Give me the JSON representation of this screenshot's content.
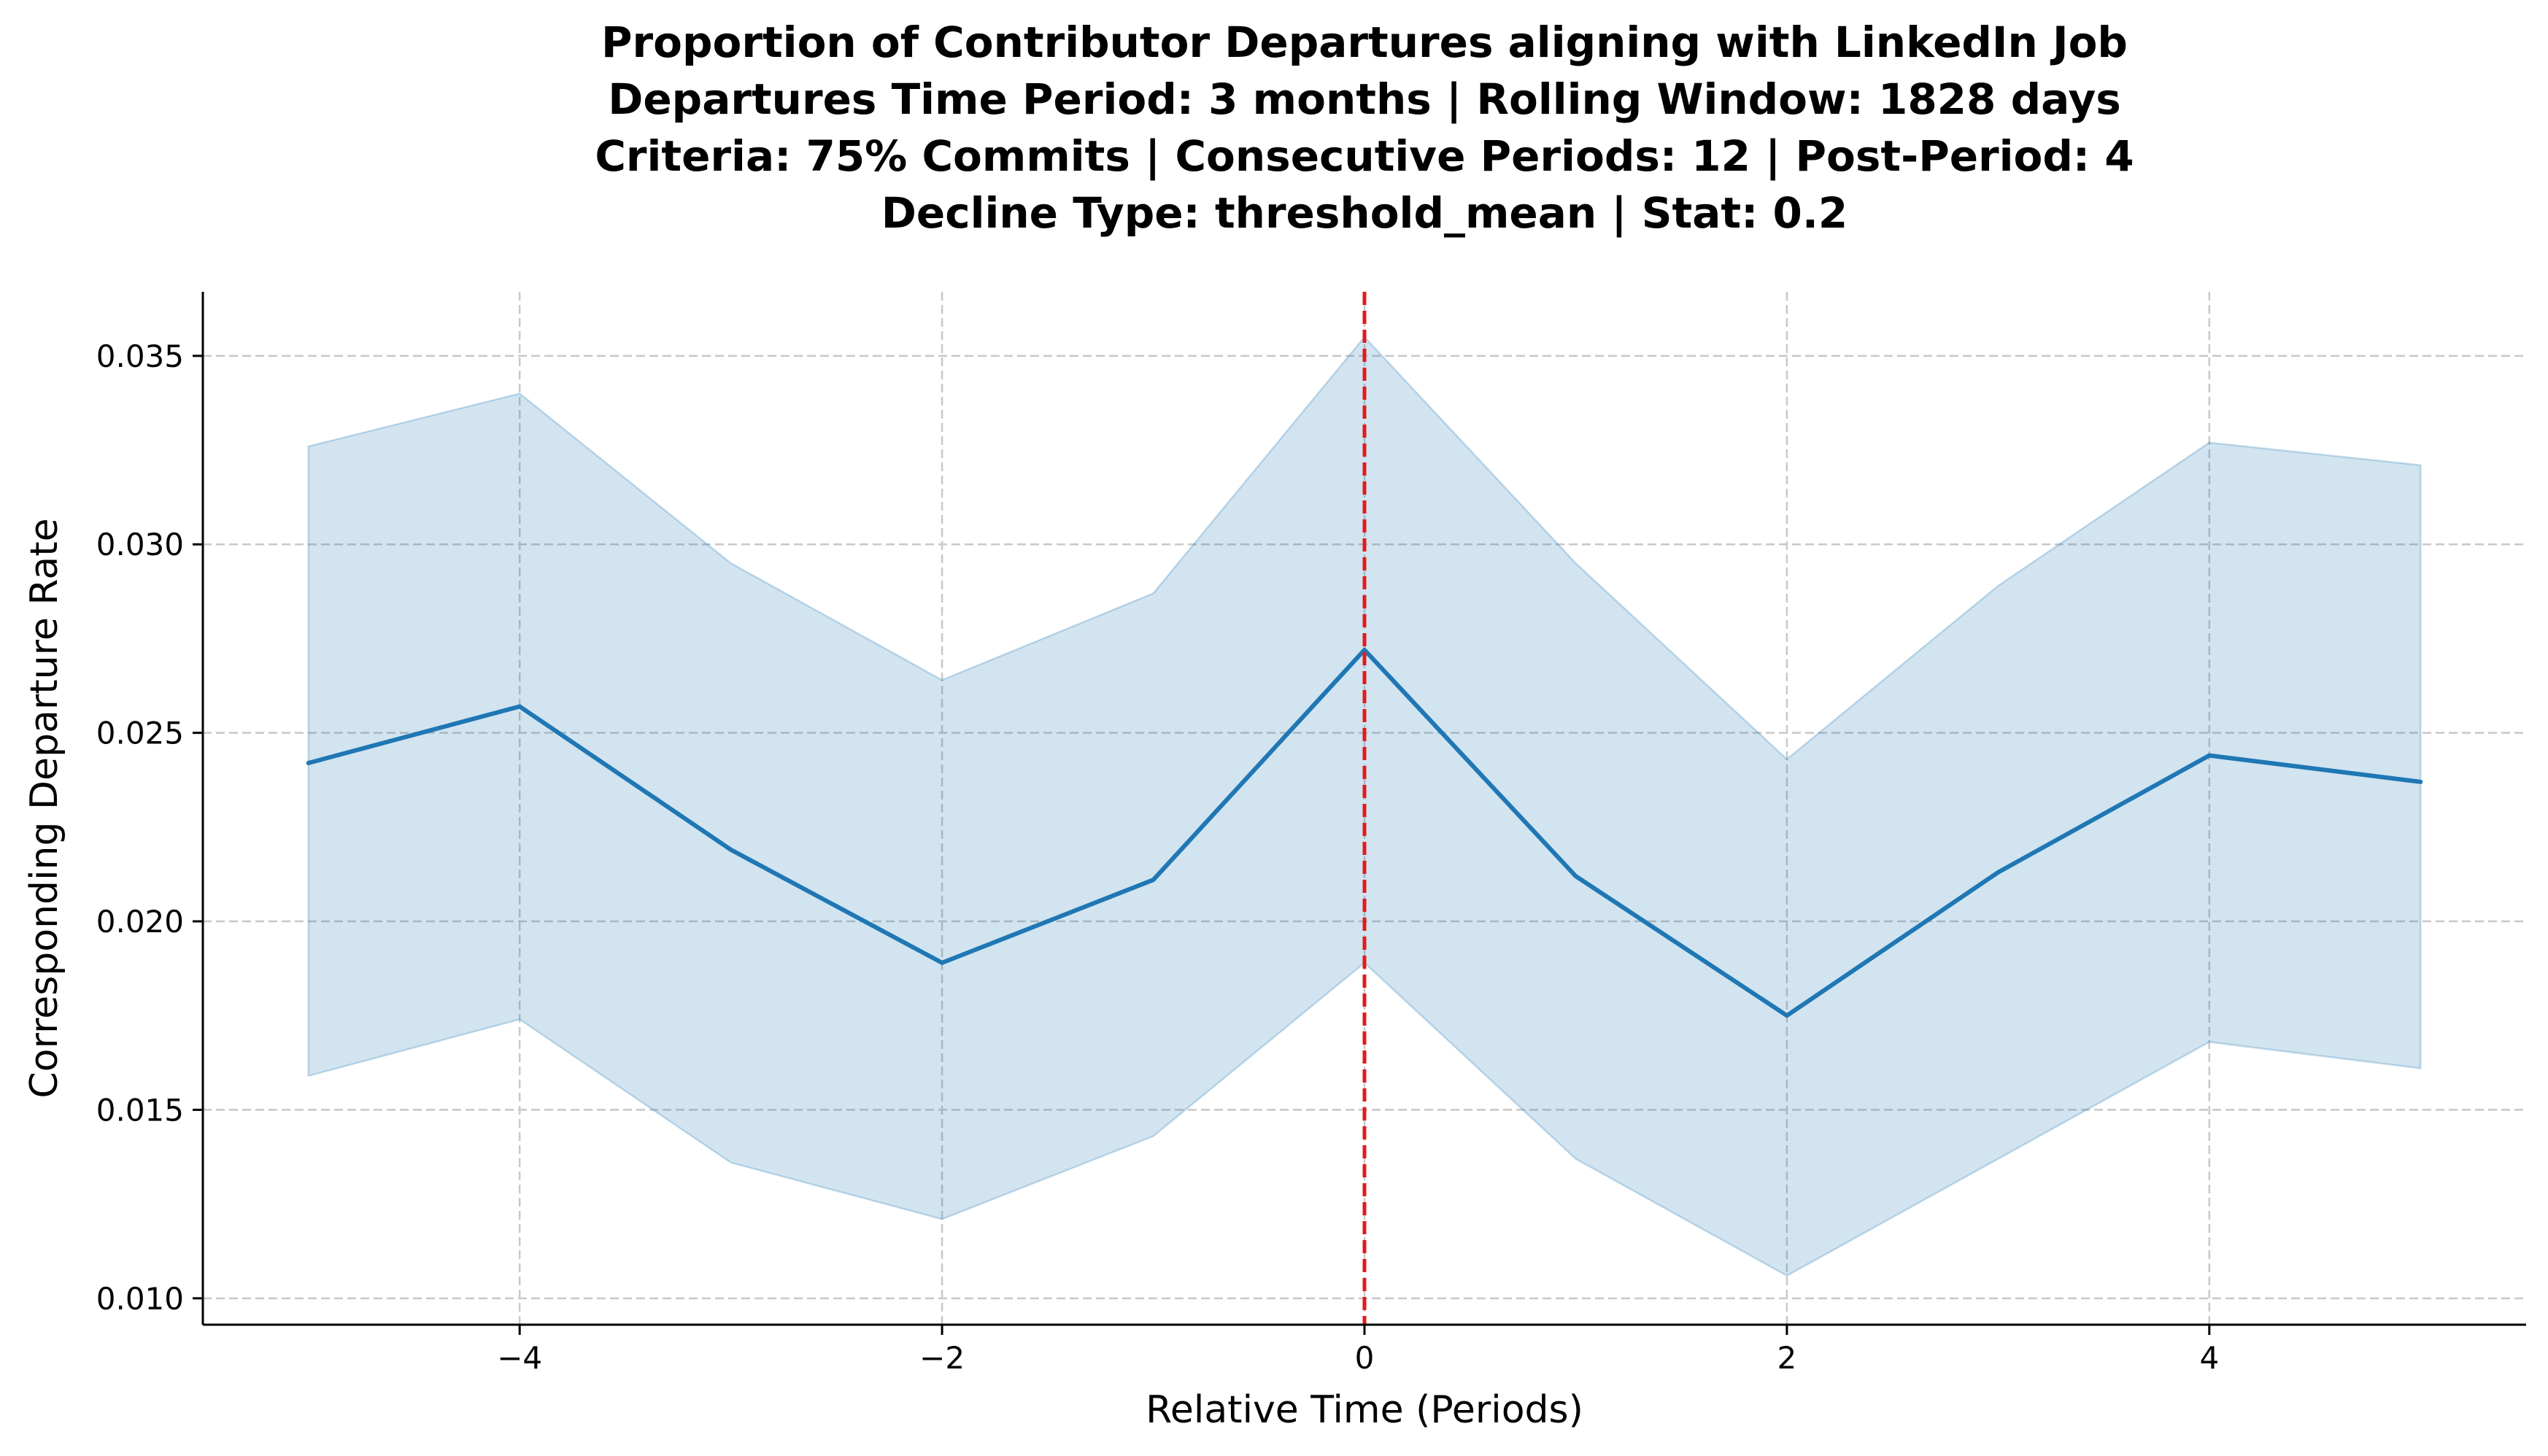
{
  "chart_data": {
    "type": "line",
    "title_lines": [
      "Proportion of Contributor Departures aligning with LinkedIn Job",
      "Departures Time Period: 3 months | Rolling Window: 1828 days",
      "Criteria: 75% Commits | Consecutive Periods: 12 | Post-Period: 4",
      "Decline Type: threshold_mean | Stat: 0.2"
    ],
    "xlabel": "Relative Time (Periods)",
    "ylabel": "Corresponding Departure Rate",
    "xlim": [
      -5.5,
      5.5
    ],
    "ylim": [
      0.0093,
      0.0367
    ],
    "xticks": [
      -4,
      -2,
      0,
      2,
      4
    ],
    "xtick_labels": [
      "−4",
      "−2",
      "0",
      "2",
      "4"
    ],
    "yticks": [
      0.01,
      0.015,
      0.02,
      0.025,
      0.03,
      0.035
    ],
    "ytick_labels": [
      "0.010",
      "0.015",
      "0.020",
      "0.025",
      "0.030",
      "0.035"
    ],
    "grid": true,
    "series": [
      {
        "x": [
          -5,
          -4,
          -3,
          -2,
          -1,
          0,
          1,
          2,
          3,
          4,
          5
        ],
        "values": [
          0.0242,
          0.0257,
          0.0219,
          0.0189,
          0.0211,
          0.0272,
          0.0212,
          0.0175,
          0.0213,
          0.0244,
          0.0237
        ],
        "lower": [
          0.0159,
          0.0174,
          0.0136,
          0.0121,
          0.0143,
          0.0189,
          0.0137,
          0.0106,
          0.0137,
          0.0168,
          0.0161
        ],
        "upper": [
          0.0326,
          0.034,
          0.0295,
          0.0264,
          0.0287,
          0.0355,
          0.0295,
          0.0243,
          0.0289,
          0.0327,
          0.0321
        ],
        "color": "#1f77b4"
      }
    ],
    "vline": {
      "x": 0,
      "color": "#e41a1c",
      "style": "dashed"
    }
  }
}
